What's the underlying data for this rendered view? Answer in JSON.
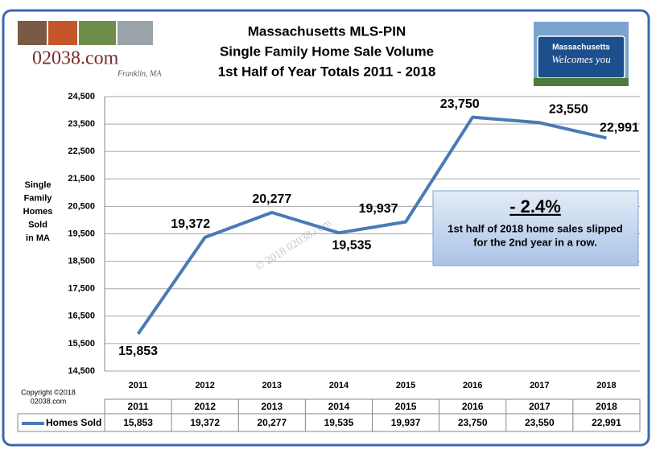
{
  "chart_data": {
    "type": "line",
    "title": [
      "Massachusetts  MLS-PIN",
      "Single Family Home Sale Volume",
      "1st Half of Year Totals  2011 - 2018"
    ],
    "ylabel": [
      "Single",
      "Family",
      "Homes",
      "Sold",
      "in MA"
    ],
    "categories": [
      "2011",
      "2012",
      "2013",
      "2014",
      "2015",
      "2016",
      "2017",
      "2018"
    ],
    "series": [
      {
        "name": "Homes Sold",
        "color": "#4a7ab5",
        "values": [
          15853,
          19372,
          20277,
          19535,
          19937,
          23750,
          23550,
          22991
        ],
        "value_labels": [
          "15,853",
          "19,372",
          "20,277",
          "19,535",
          "19,937",
          "23,750",
          "23,550",
          "22,991"
        ]
      }
    ],
    "ylim": [
      14500,
      24500
    ],
    "yticks": [
      {
        "value": 14500,
        "label": "14,500"
      },
      {
        "value": 15500,
        "label": "15,500"
      },
      {
        "value": 16500,
        "label": "16,500"
      },
      {
        "value": 17500,
        "label": "17,500"
      },
      {
        "value": 18500,
        "label": "18,500"
      },
      {
        "value": 19500,
        "label": "19,500"
      },
      {
        "value": 20500,
        "label": "20,500"
      },
      {
        "value": 21500,
        "label": "21,500"
      },
      {
        "value": 22500,
        "label": "22,500"
      },
      {
        "value": 23500,
        "label": "23,500"
      },
      {
        "value": 24500,
        "label": "24,500"
      }
    ],
    "grid": true,
    "annotation": {
      "headline": "- 2.4%",
      "lines": [
        "1st half of 2018 home sales slipped",
        "for the  2nd year in a row."
      ]
    },
    "watermark": "© 2018 02038.com",
    "copyright": [
      "Copyright ©2018",
      "02038.com"
    ],
    "logo": {
      "site": "02038.com",
      "town": "Franklin, MA"
    },
    "sign": [
      "Massachusetts",
      "Welcomes you"
    ]
  }
}
